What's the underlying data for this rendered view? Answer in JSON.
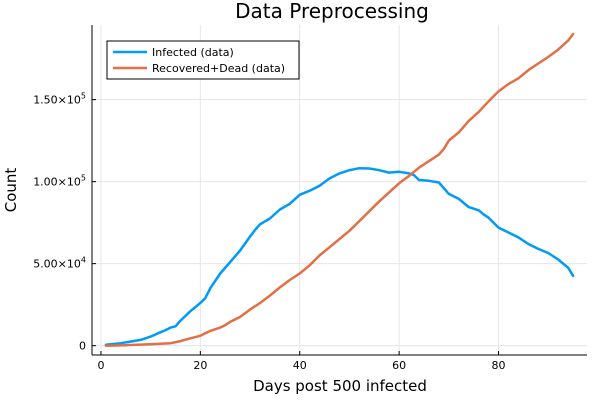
{
  "chart_data": {
    "type": "line",
    "title": "Data Preprocessing",
    "xlabel": "Days post 500 infected",
    "ylabel": "Count",
    "xlim": [
      -1.8,
      97.8
    ],
    "ylim": [
      -5700,
      195500
    ],
    "xticks": [
      {
        "value": 0,
        "label": "0"
      },
      {
        "value": 20,
        "label": "20"
      },
      {
        "value": 40,
        "label": "40"
      },
      {
        "value": 60,
        "label": "60"
      },
      {
        "value": 80,
        "label": "80"
      }
    ],
    "yticks": [
      {
        "value": 0,
        "label": "0"
      },
      {
        "value": 50000,
        "mant": "5.00×10",
        "exp": "4"
      },
      {
        "value": 100000,
        "mant": "1.00×10",
        "exp": "5"
      },
      {
        "value": 150000,
        "mant": "1.50×10",
        "exp": "5"
      }
    ],
    "grid": true,
    "legend_position": "top-left",
    "series": [
      {
        "name": "Infected (data)",
        "color": "#009AF9",
        "x": [
          1,
          4,
          8,
          10,
          12,
          13,
          14,
          15,
          16,
          18,
          20,
          21,
          22,
          24,
          26,
          28,
          30,
          31,
          32,
          34,
          36,
          38,
          40,
          42,
          44,
          46,
          48,
          50,
          52,
          54,
          56,
          58,
          60,
          62,
          63,
          64,
          66,
          68,
          69,
          70,
          72,
          74,
          76,
          77,
          78,
          80,
          82,
          84,
          86,
          88,
          90,
          92,
          94,
          95
        ],
        "y": [
          600,
          1500,
          3500,
          5500,
          8200,
          9500,
          11000,
          11800,
          15300,
          21000,
          26000,
          29000,
          35000,
          44000,
          51000,
          58000,
          66500,
          70500,
          74000,
          77500,
          83000,
          86500,
          92000,
          94500,
          97500,
          102000,
          105000,
          107000,
          108200,
          108000,
          107000,
          105500,
          106000,
          105000,
          104000,
          101000,
          100500,
          99500,
          96000,
          92500,
          89500,
          84500,
          82500,
          80000,
          78000,
          72000,
          69000,
          66000,
          62000,
          59000,
          56500,
          52500,
          47500,
          42500
        ]
      },
      {
        "name": "Recovered+Dead (data)",
        "color": "#E26F46",
        "x": [
          1,
          5,
          10,
          14,
          16,
          18,
          20,
          21,
          22,
          24,
          25,
          26,
          28,
          30,
          32,
          34,
          36,
          38,
          40,
          42,
          44,
          46,
          48,
          50,
          52,
          54,
          56,
          58,
          60,
          62,
          63,
          64,
          66,
          68,
          69,
          70,
          72,
          74,
          76,
          78,
          79,
          80,
          82,
          84,
          86,
          88,
          90,
          92,
          94,
          95
        ],
        "y": [
          0,
          300,
          800,
          1500,
          2800,
          4500,
          6000,
          7500,
          9000,
          11000,
          12500,
          14500,
          17500,
          22000,
          26000,
          30500,
          35500,
          40000,
          44000,
          49000,
          55000,
          60000,
          65000,
          70000,
          76000,
          82000,
          88000,
          93500,
          99000,
          103500,
          106000,
          108500,
          112500,
          116500,
          120000,
          125000,
          130000,
          137000,
          142500,
          149000,
          152000,
          155000,
          159500,
          163000,
          168000,
          172000,
          176000,
          180500,
          186000,
          190000
        ]
      }
    ]
  }
}
